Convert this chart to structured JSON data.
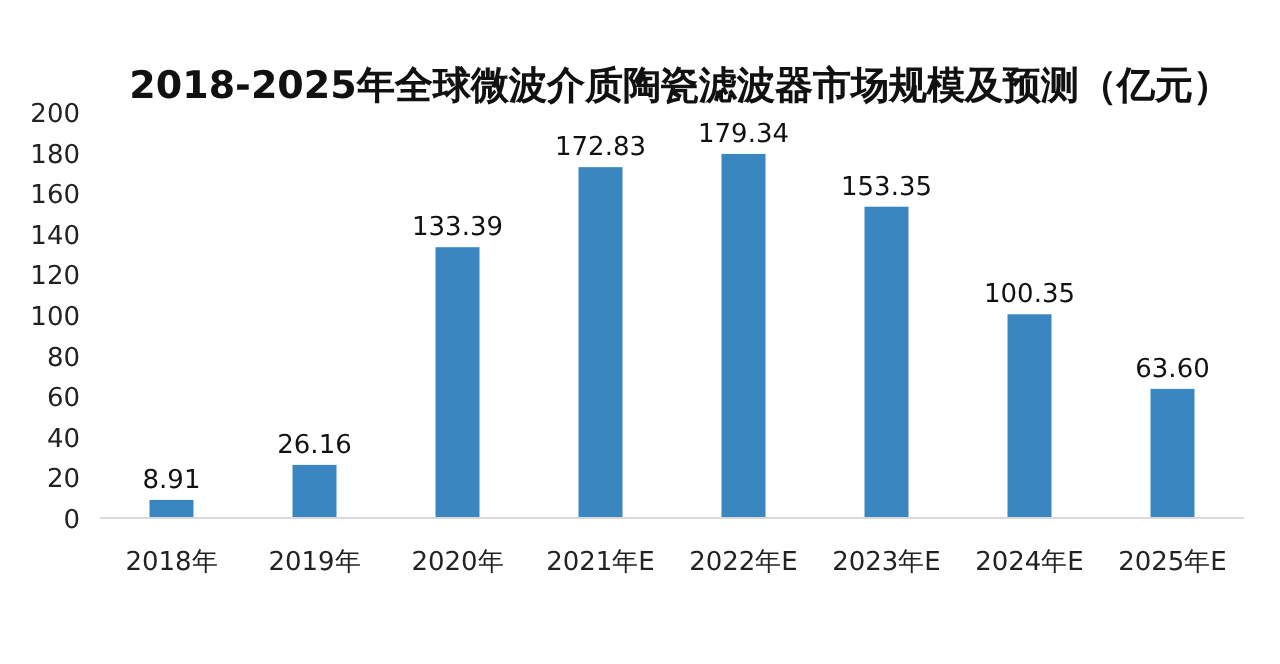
{
  "chart_data": {
    "type": "bar",
    "title": "2018-2025年全球微波介质陶瓷滤波器市场规模及预测（亿元）",
    "categories": [
      "2018年",
      "2019年",
      "2020年",
      "2021年E",
      "2022年E",
      "2023年E",
      "2024年E",
      "2025年E"
    ],
    "values": [
      8.91,
      26.16,
      133.39,
      172.83,
      179.34,
      153.35,
      100.35,
      63.6
    ],
    "value_labels": [
      "8.91",
      "26.16",
      "133.39",
      "172.83",
      "179.34",
      "153.35",
      "100.35",
      "63.60"
    ],
    "color": "#3a86c0",
    "ylim": [
      0,
      200
    ],
    "yticks": [
      0,
      20,
      40,
      60,
      80,
      100,
      120,
      140,
      160,
      180,
      200
    ]
  }
}
